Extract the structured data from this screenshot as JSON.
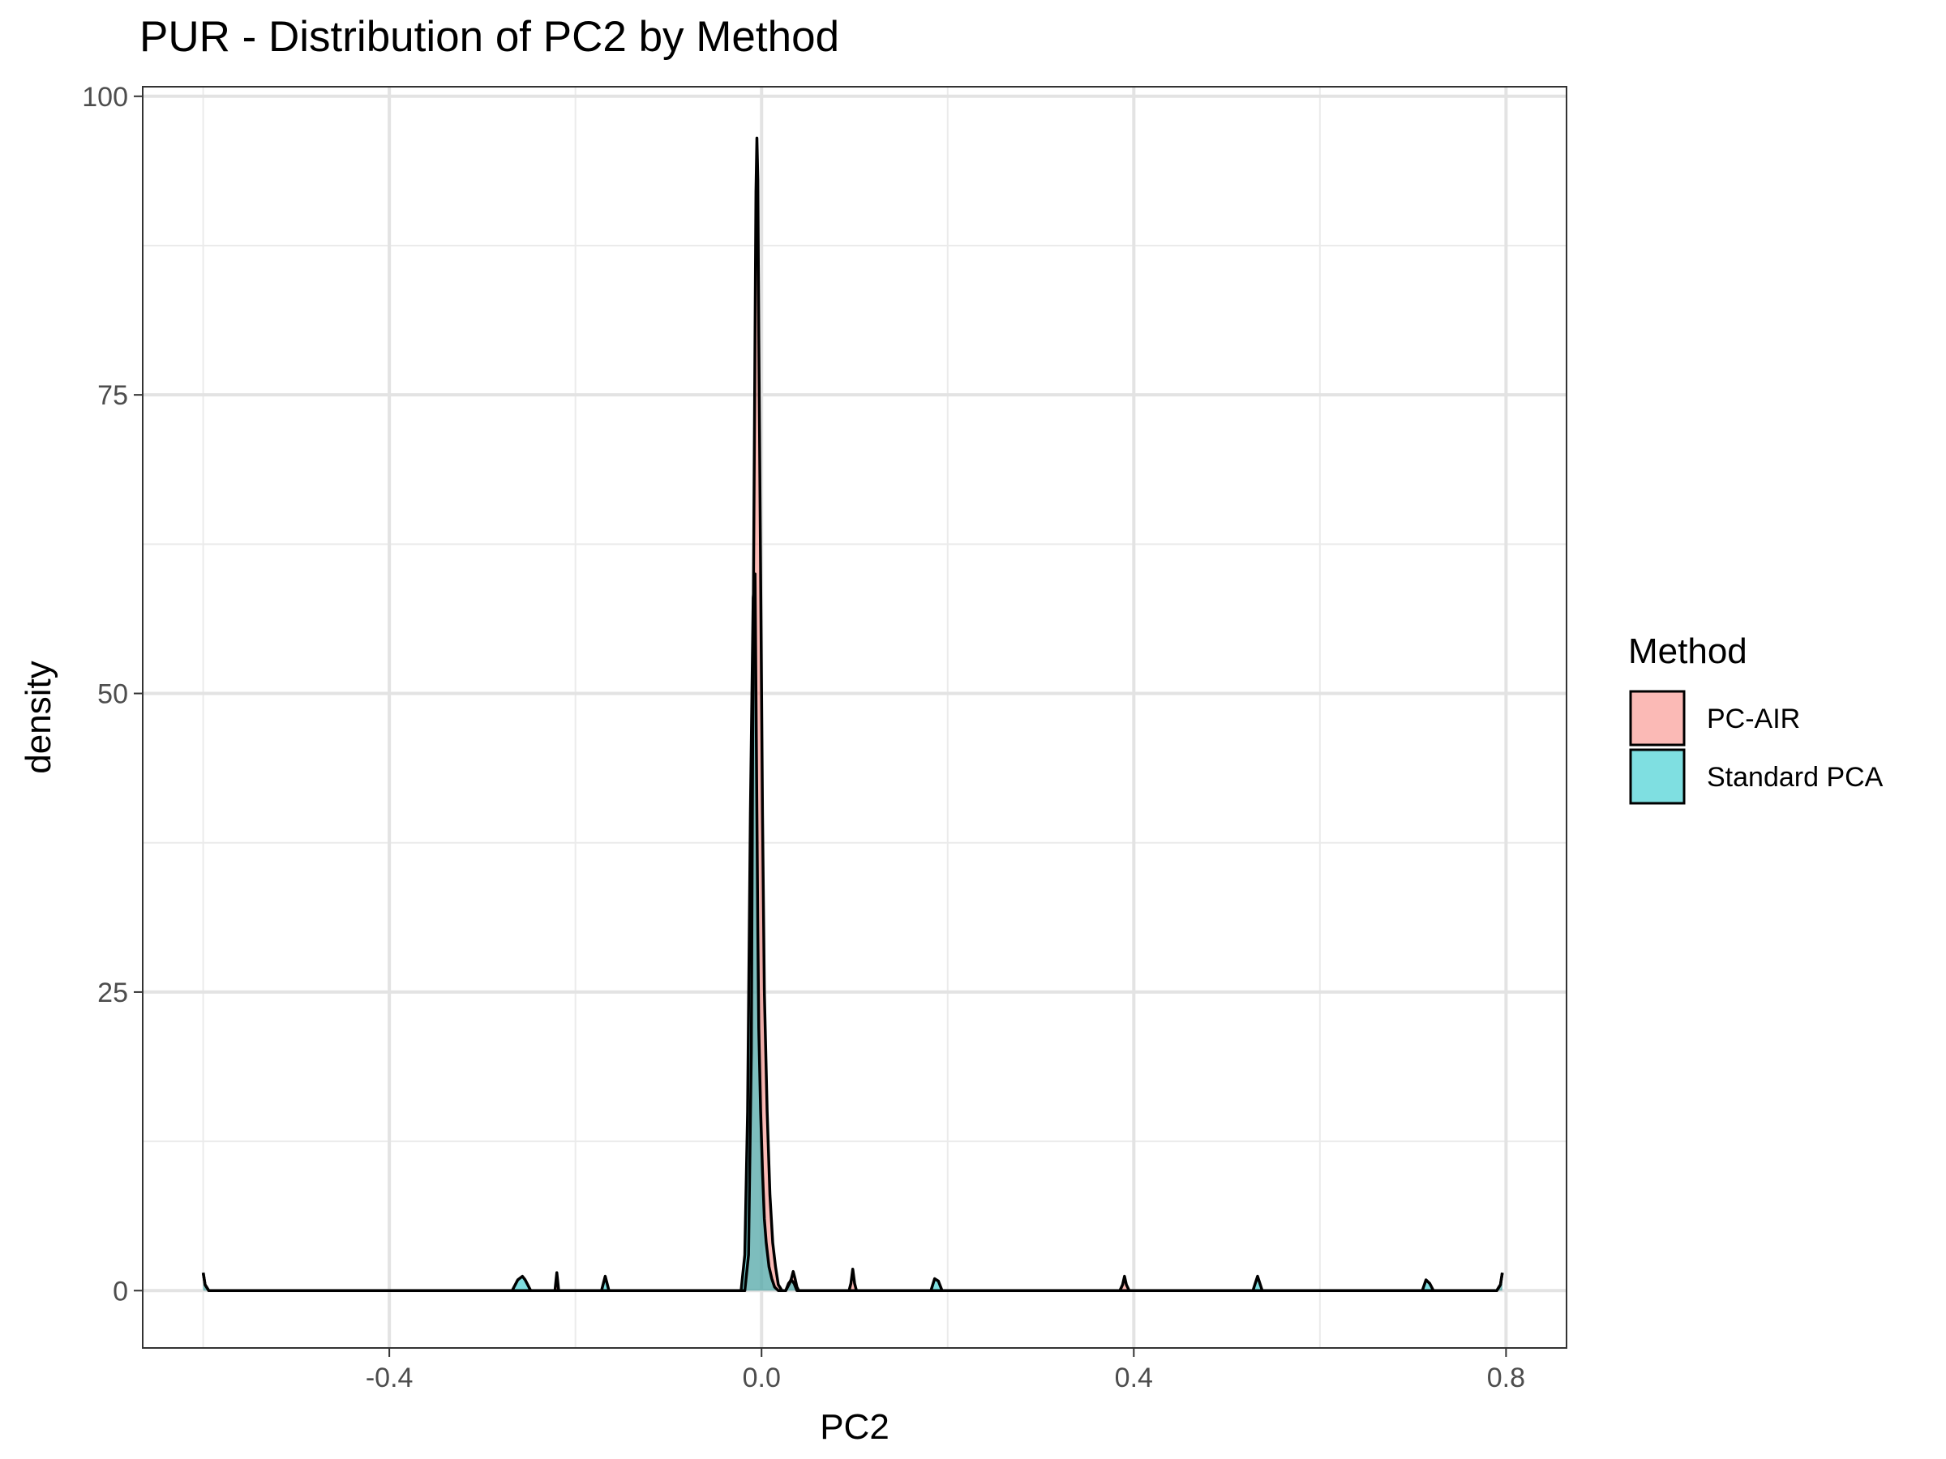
{
  "chart_data": {
    "type": "area",
    "title": "PUR - Distribution of PC2 by Method",
    "xlabel": "PC2",
    "ylabel": "density",
    "xlim": [
      -0.665,
      0.865
    ],
    "ylim": [
      -4.8,
      100.8
    ],
    "x_ticks": [
      -0.4,
      0.0,
      0.4,
      0.8
    ],
    "x_tick_labels": [
      "-0.4",
      "0.0",
      "0.4",
      "0.8"
    ],
    "x_minor_ticks": [
      -0.6,
      -0.2,
      0.2,
      0.6
    ],
    "y_ticks": [
      0,
      25,
      50,
      75,
      100
    ],
    "y_tick_labels": [
      "0",
      "25",
      "50",
      "75",
      "100"
    ],
    "y_minor_ticks": [
      12.5,
      37.5,
      62.5,
      87.5
    ],
    "grid": true,
    "legend": {
      "title": "Method",
      "position": "right"
    },
    "series": [
      {
        "name": "PC-AIR",
        "color": "#F8766D",
        "x": [
          -0.6,
          -0.598,
          -0.594,
          -0.26,
          -0.222,
          -0.22,
          -0.218,
          -0.03,
          -0.018,
          -0.014,
          -0.011,
          -0.009,
          -0.007,
          -0.006,
          -0.005,
          -0.004,
          -0.003,
          -0.001,
          0.001,
          0.003,
          0.006,
          0.009,
          0.012,
          0.015,
          0.018,
          0.022,
          0.026,
          0.028,
          0.03,
          0.032,
          0.034,
          0.036,
          0.038,
          0.04,
          0.094,
          0.096,
          0.098,
          0.1,
          0.102,
          0.385,
          0.388,
          0.39,
          0.392,
          0.395,
          0.79,
          0.794,
          0.796
        ],
        "y": [
          1.5,
          0.5,
          0,
          0,
          0,
          1.5,
          0,
          0,
          0,
          3,
          20,
          55,
          80,
          92,
          96.5,
          93,
          80,
          60,
          40,
          25,
          15,
          8,
          4,
          2,
          0.5,
          0,
          0,
          0.3,
          0.6,
          1,
          1.6,
          1,
          0.3,
          0,
          0,
          0.6,
          1.8,
          0.6,
          0,
          0,
          0.5,
          1.2,
          0.5,
          0,
          0,
          0.5,
          1.5
        ]
      },
      {
        "name": "Standard PCA",
        "color": "#00BFC4",
        "x": [
          -0.6,
          -0.598,
          -0.594,
          -0.268,
          -0.262,
          -0.257,
          -0.254,
          -0.248,
          -0.172,
          -0.168,
          -0.164,
          -0.03,
          -0.022,
          -0.018,
          -0.015,
          -0.012,
          -0.009,
          -0.007,
          -0.006,
          -0.005,
          -0.004,
          -0.003,
          -0.001,
          0.001,
          0.003,
          0.005,
          0.008,
          0.011,
          0.014,
          0.018,
          0.026,
          0.029,
          0.032,
          0.035,
          0.038,
          0.182,
          0.186,
          0.19,
          0.194,
          0.528,
          0.533,
          0.538,
          0.71,
          0.714,
          0.718,
          0.722,
          0.79,
          0.794,
          0.796
        ],
        "y": [
          1.5,
          0.5,
          0,
          0,
          0.9,
          1.2,
          0.9,
          0,
          0,
          1.2,
          0,
          0,
          0,
          3,
          15,
          40,
          58,
          60,
          50,
          40,
          30,
          22,
          15,
          10,
          6,
          4,
          2,
          1,
          0.3,
          0,
          0,
          0.6,
          0.9,
          0.6,
          0,
          0,
          1,
          0.8,
          0,
          0,
          1.2,
          0,
          0,
          0.9,
          0.6,
          0,
          0,
          0.5,
          1.5
        ]
      }
    ]
  }
}
